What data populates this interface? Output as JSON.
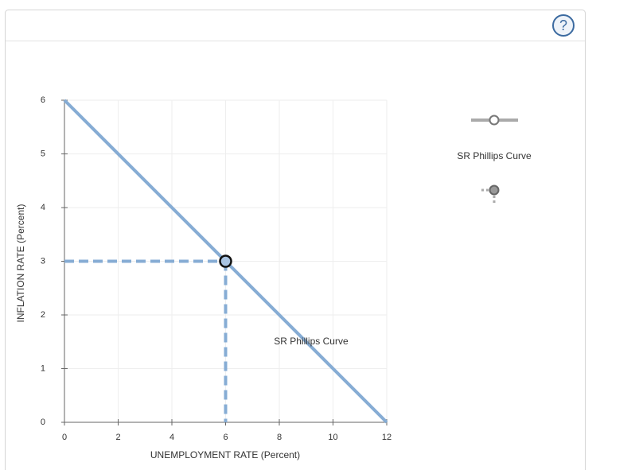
{
  "help_button": "?",
  "chart_data": {
    "type": "line",
    "xlabel": "UNEMPLOYMENT RATE (Percent)",
    "ylabel": "INFLATION RATE (Percent)",
    "xlim": [
      0,
      12
    ],
    "xticks": [
      0,
      2,
      4,
      6,
      8,
      10,
      12
    ],
    "ylim": [
      0,
      6
    ],
    "yticks": [
      0,
      1,
      2,
      3,
      4,
      5,
      6
    ],
    "grid": true,
    "series": [
      {
        "name": "SR Phillips Curve",
        "color": "#86acd4",
        "x": [
          0,
          12
        ],
        "values": [
          6,
          0
        ]
      }
    ],
    "points": [
      {
        "x": 6,
        "y": 3
      }
    ]
  }
}
